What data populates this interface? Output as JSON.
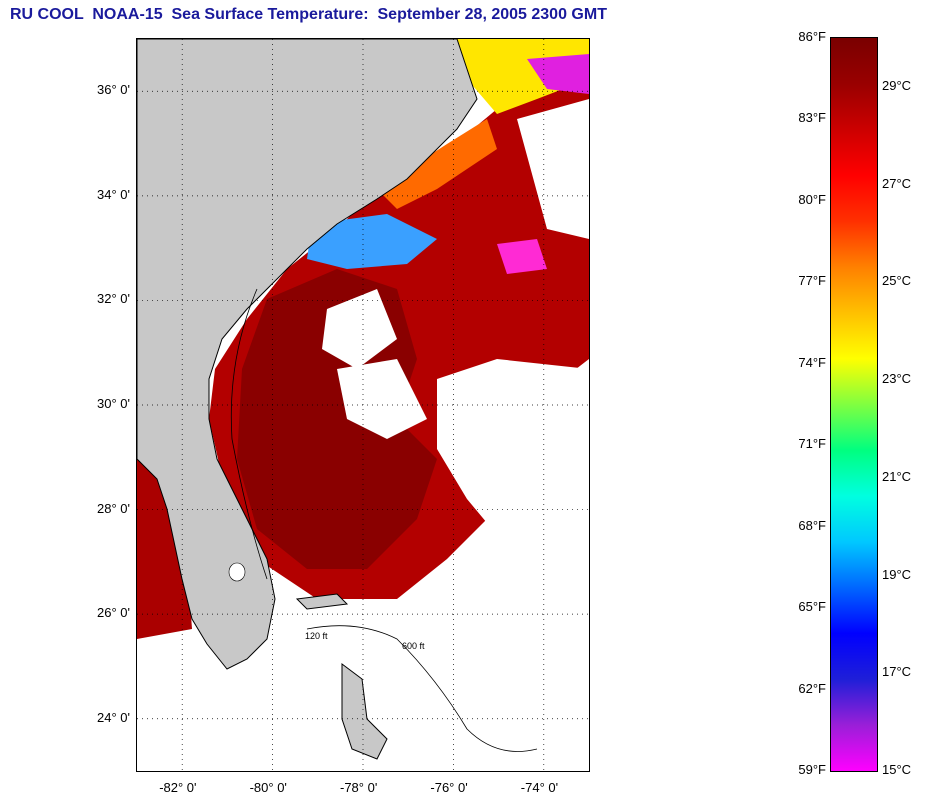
{
  "title": "RU COOL  NOAA-15  Sea Surface Temperature:  September 28, 2005 2300 GMT",
  "map": {
    "lat_range": [
      23,
      37
    ],
    "lon_range": [
      -83,
      -73
    ],
    "lat_ticks": [
      {
        "value": 36,
        "label": "36° 0'"
      },
      {
        "value": 34,
        "label": "34° 0'"
      },
      {
        "value": 32,
        "label": "32° 0'"
      },
      {
        "value": 30,
        "label": "30° 0'"
      },
      {
        "value": 28,
        "label": "28° 0'"
      },
      {
        "value": 26,
        "label": "26° 0'"
      },
      {
        "value": 24,
        "label": "24° 0'"
      }
    ],
    "lon_ticks": [
      {
        "value": -82,
        "label": "-82° 0'"
      },
      {
        "value": -80,
        "label": "-80° 0'"
      },
      {
        "value": -78,
        "label": "-78° 0'"
      },
      {
        "value": -76,
        "label": "-76° 0'"
      },
      {
        "value": -74,
        "label": "-74° 0'"
      }
    ],
    "contour_labels": [
      "120 ft",
      "600 ft"
    ],
    "grid": "dotted",
    "land_color": "#c8c8c8",
    "cloud_color": "#ffffff"
  },
  "colorbar": {
    "fahrenheit": [
      "86°F",
      "83°F",
      "80°F",
      "77°F",
      "74°F",
      "71°F",
      "68°F",
      "65°F",
      "62°F",
      "59°F"
    ],
    "celsius": [
      "29°C",
      "27°C",
      "25°C",
      "23°C",
      "21°C",
      "19°C",
      "17°C",
      "15°C"
    ],
    "colors": [
      "#ff00ff",
      "#9a1fd8",
      "#1f1fd8",
      "#0000ff",
      "#0066ff",
      "#00c8ff",
      "#00ffe0",
      "#00ff80",
      "#80ff40",
      "#ffff00",
      "#ffc000",
      "#ff8000",
      "#ff3000",
      "#ff0000",
      "#cc0000",
      "#990000",
      "#7a0000"
    ]
  }
}
